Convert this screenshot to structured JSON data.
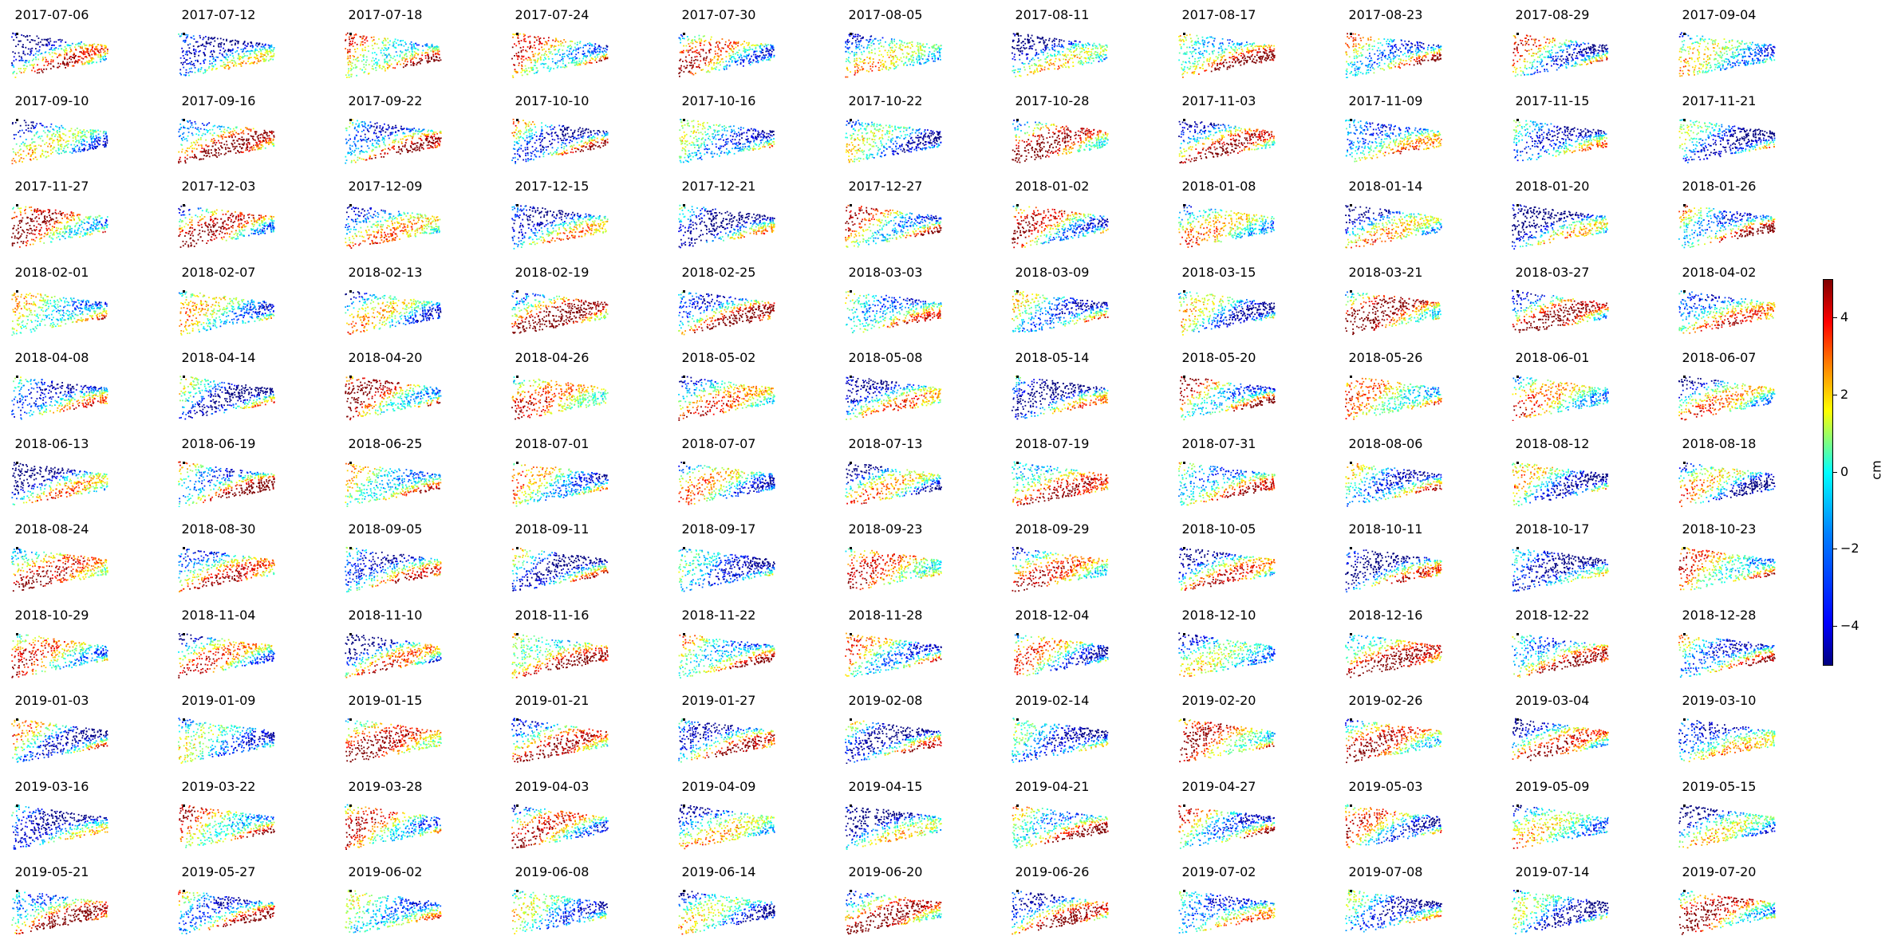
{
  "chart_data": {
    "type": "heatmap",
    "panels": [
      "2017-07-06",
      "2017-07-12",
      "2017-07-18",
      "2017-07-24",
      "2017-07-30",
      "2017-08-05",
      "2017-08-11",
      "2017-08-17",
      "2017-08-23",
      "2017-08-29",
      "2017-09-04",
      "2017-09-10",
      "2017-09-16",
      "2017-09-22",
      "2017-10-10",
      "2017-10-16",
      "2017-10-22",
      "2017-10-28",
      "2017-11-03",
      "2017-11-09",
      "2017-11-15",
      "2017-11-21",
      "2017-11-27",
      "2017-12-03",
      "2017-12-09",
      "2017-12-15",
      "2017-12-21",
      "2017-12-27",
      "2018-01-02",
      "2018-01-08",
      "2018-01-14",
      "2018-01-20",
      "2018-01-26",
      "2018-02-01",
      "2018-02-07",
      "2018-02-13",
      "2018-02-19",
      "2018-02-25",
      "2018-03-03",
      "2018-03-09",
      "2018-03-15",
      "2018-03-21",
      "2018-03-27",
      "2018-04-02",
      "2018-04-08",
      "2018-04-14",
      "2018-04-20",
      "2018-04-26",
      "2018-05-02",
      "2018-05-08",
      "2018-05-14",
      "2018-05-20",
      "2018-05-26",
      "2018-06-01",
      "2018-06-07",
      "2018-06-13",
      "2018-06-19",
      "2018-06-25",
      "2018-07-01",
      "2018-07-07",
      "2018-07-13",
      "2018-07-19",
      "2018-07-31",
      "2018-08-06",
      "2018-08-12",
      "2018-08-18",
      "2018-08-24",
      "2018-08-30",
      "2018-09-05",
      "2018-09-11",
      "2018-09-17",
      "2018-09-23",
      "2018-09-29",
      "2018-10-05",
      "2018-10-11",
      "2018-10-17",
      "2018-10-23",
      "2018-10-29",
      "2018-11-04",
      "2018-11-10",
      "2018-11-16",
      "2018-11-22",
      "2018-11-28",
      "2018-12-04",
      "2018-12-10",
      "2018-12-16",
      "2018-12-22",
      "2018-12-28",
      "2019-01-03",
      "2019-01-09",
      "2019-01-15",
      "2019-01-21",
      "2019-01-27",
      "2019-02-08",
      "2019-02-14",
      "2019-02-20",
      "2019-02-26",
      "2019-03-04",
      "2019-03-10",
      "2019-03-16",
      "2019-03-22",
      "2019-03-28",
      "2019-04-03",
      "2019-04-09",
      "2019-04-15",
      "2019-04-21",
      "2019-04-27",
      "2019-05-03",
      "2019-05-09",
      "2019-05-15",
      "2019-05-21",
      "2019-05-27",
      "2019-06-02",
      "2019-06-08",
      "2019-06-14",
      "2019-06-20",
      "2019-06-26",
      "2019-07-02",
      "2019-07-08",
      "2019-07-14",
      "2019-07-20"
    ],
    "grid": {
      "rows": 11,
      "cols": 11
    },
    "colorbar": {
      "label": "cm",
      "vmin": -5,
      "vmax": 5,
      "ticks": [
        4,
        2,
        0,
        -2,
        -4
      ],
      "tick_labels": [
        "4",
        "2",
        "0",
        "−2",
        "−4"
      ],
      "colormap": "jet"
    }
  },
  "colors": {
    "cmap_stops": [
      "#00007f",
      "#0000ff",
      "#007fff",
      "#00ffff",
      "#7fff7f",
      "#ffff00",
      "#ff7f00",
      "#ff0000",
      "#7f0000"
    ]
  }
}
